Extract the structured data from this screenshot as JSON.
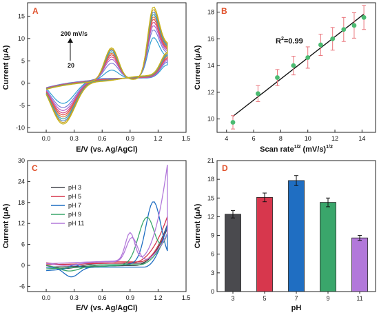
{
  "panel_colors": {
    "A": "#e0502a",
    "B": "#e0502a",
    "C": "#e0502a",
    "D": "#e0502a"
  },
  "chart_data": [
    {
      "panel": "A",
      "type": "line",
      "xlabel": "E/V (vs. Ag/AgCl)",
      "ylabel": "Current (μA)",
      "xlim": [
        -0.2,
        1.5
      ],
      "ylim": [
        -11,
        18
      ],
      "xticks": [
        "0.0",
        "0.3",
        "0.6",
        "0.9",
        "1.2",
        "1.5"
      ],
      "yticks": [
        "-10",
        "-5",
        "0",
        "5",
        "10",
        "15"
      ],
      "annotations": {
        "top": "200 mV/s",
        "bottom": "20"
      },
      "scan_rates_mV_s": [
        20,
        40,
        60,
        80,
        100,
        120,
        140,
        160,
        180,
        200
      ],
      "series_colors": [
        "#2f9fd3",
        "#7c7cd8",
        "#b060c8",
        "#d65088",
        "#e04a4a",
        "#e07840",
        "#3aa0a0",
        "#5b8ac6",
        "#c8a020",
        "#c8b41a"
      ],
      "anodic_peak_uA": [
        9.7,
        11.5,
        12.5,
        13.3,
        14.0,
        14.6,
        15.2,
        15.8,
        16.4,
        17.0
      ],
      "cathodic_min_uA": [
        -4.5,
        -5.5,
        -6.2,
        -6.8,
        -7.3,
        -7.8,
        -8.3,
        -8.8,
        -9.2,
        -9.6
      ],
      "shoulder_peak_uA": [
        2.0,
        3.6,
        4.5,
        5.1,
        5.6,
        6.0,
        6.4,
        6.8,
        7.1,
        7.4
      ],
      "shoulder_x_V": 0.7,
      "main_peak_x_V": 1.15,
      "return_min_x_V": 0.18
    },
    {
      "panel": "B",
      "type": "scatter",
      "xlabel": "Scan rate",
      "xlabel_sup1": "1/2",
      "xlabel_units": " (mV/s)",
      "xlabel_sup2": "1/2",
      "ylabel": "Current (μA)",
      "xlim": [
        3.3,
        15.0
      ],
      "ylim": [
        9.0,
        18.7
      ],
      "xticks": [
        "4",
        "6",
        "8",
        "10",
        "12",
        "14"
      ],
      "yticks": [
        "10",
        "12",
        "14",
        "16",
        "18"
      ],
      "r2_base": "R",
      "r2_sup": "2",
      "r2_value": "=0.99",
      "x": [
        4.47,
        6.32,
        7.75,
        8.94,
        10.0,
        10.95,
        11.83,
        12.65,
        13.42,
        14.14
      ],
      "y": [
        9.75,
        11.9,
        13.1,
        14.0,
        14.6,
        15.55,
        16.0,
        16.7,
        17.0,
        17.6
      ],
      "err": [
        0.5,
        0.6,
        0.6,
        0.7,
        0.8,
        0.8,
        0.85,
        0.9,
        0.95,
        0.9
      ],
      "fit": [
        [
          4.47,
          10.2
        ],
        [
          14.14,
          17.85
        ]
      ],
      "point_color": "#4cbb72",
      "err_color": "#e9737a",
      "fit_color": "#111111"
    },
    {
      "panel": "C",
      "type": "line",
      "xlabel": "E/V (vs. Ag/AgCl)",
      "ylabel": "Current (μA)",
      "xlim": [
        -0.2,
        1.5
      ],
      "ylim": [
        -7.5,
        30
      ],
      "xticks": [
        "0.0",
        "0.3",
        "0.6",
        "0.9",
        "1.2",
        "1.5"
      ],
      "yticks": [
        "-6",
        "0",
        "6",
        "12",
        "18",
        "24",
        "30"
      ],
      "legend_position": "upper-left",
      "series": [
        {
          "name": "pH 3",
          "color": "#45464e"
        },
        {
          "name": "pH 5",
          "color": "#d7374d"
        },
        {
          "name": "pH 7",
          "color": "#1f6ec2"
        },
        {
          "name": "pH 9",
          "color": "#3aa66b"
        },
        {
          "name": "pH 11",
          "color": "#b278da"
        }
      ]
    },
    {
      "panel": "D",
      "type": "bar",
      "xlabel": "pH",
      "ylabel": "Current (μA)",
      "categories": [
        "3",
        "5",
        "7",
        "9",
        "11"
      ],
      "values": [
        12.4,
        15.1,
        17.8,
        14.3,
        8.6
      ],
      "errors": [
        0.6,
        0.7,
        0.8,
        0.7,
        0.4
      ],
      "colors": [
        "#4a4a4e",
        "#d7374d",
        "#1f6ec2",
        "#3aa66b",
        "#b278da"
      ],
      "ylim": [
        0,
        21
      ],
      "yticks": [
        "0",
        "3",
        "6",
        "9",
        "12",
        "15",
        "18",
        "21"
      ]
    }
  ]
}
